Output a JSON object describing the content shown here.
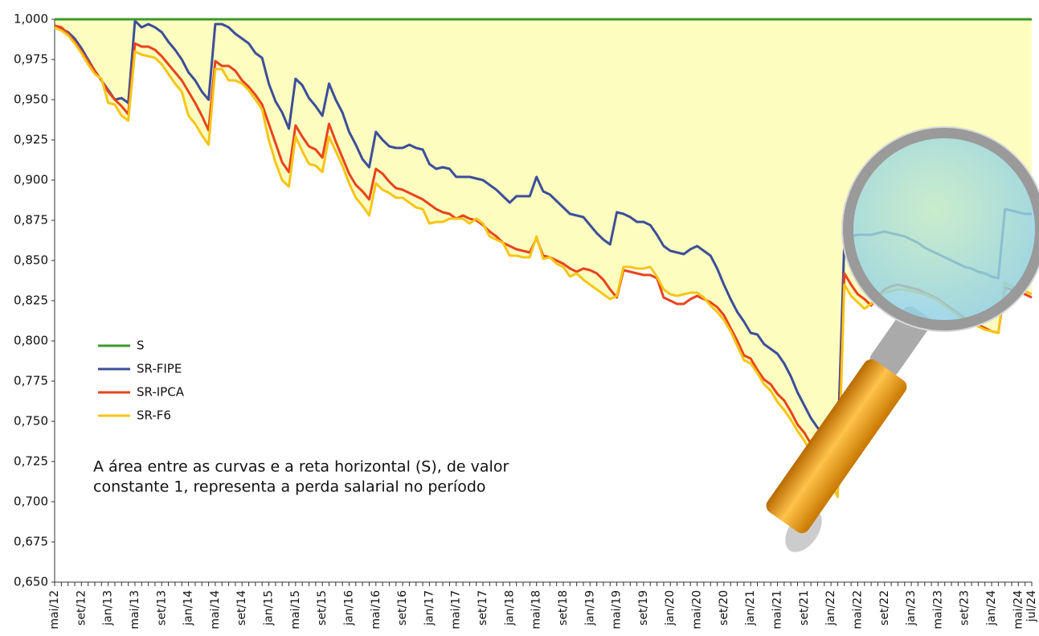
{
  "chart_data": {
    "type": "line",
    "categories": [
      "mai/12",
      null,
      null,
      null,
      "set/12",
      null,
      null,
      null,
      "jan/13",
      null,
      null,
      null,
      "mai/13",
      null,
      null,
      null,
      "set/13",
      null,
      null,
      null,
      "jan/14",
      null,
      null,
      null,
      "mai/14",
      null,
      null,
      null,
      "set/14",
      null,
      null,
      null,
      "jan/15",
      null,
      null,
      null,
      "mai/15",
      null,
      null,
      null,
      "set/15",
      null,
      null,
      null,
      "jan/16",
      null,
      null,
      null,
      "mai/16",
      null,
      null,
      null,
      "set/16",
      null,
      null,
      null,
      "jan/17",
      null,
      null,
      null,
      "mai/17",
      null,
      null,
      null,
      "set/17",
      null,
      null,
      null,
      "jan/18",
      null,
      null,
      null,
      "mai/18",
      null,
      null,
      null,
      "set/18",
      null,
      null,
      null,
      "jan/19",
      null,
      null,
      null,
      "mai/19",
      null,
      null,
      null,
      "set/19",
      null,
      null,
      null,
      "jan/20",
      null,
      null,
      null,
      "mai/20",
      null,
      null,
      null,
      "set/20",
      null,
      null,
      null,
      "jan/21",
      null,
      null,
      null,
      "mai/21",
      null,
      null,
      null,
      "set/21",
      null,
      null,
      null,
      "jan/22",
      null,
      null,
      null,
      "mai/22",
      null,
      null,
      null,
      "set/22",
      null,
      null,
      null,
      "jan/23",
      null,
      null,
      null,
      "mai/23",
      null,
      null,
      null,
      "set/23",
      null,
      null,
      null,
      "jan/24",
      null,
      null,
      null,
      "mai/24",
      null,
      "jul/24"
    ],
    "series": [
      {
        "name": "S",
        "color": "#3a9a2a",
        "values": [
          1,
          1,
          1,
          1,
          1,
          1,
          1,
          1,
          1,
          1,
          1,
          1,
          1,
          1,
          1,
          1,
          1,
          1,
          1,
          1,
          1,
          1,
          1,
          1,
          1,
          1,
          1,
          1,
          1,
          1,
          1,
          1,
          1,
          1,
          1,
          1,
          1,
          1,
          1,
          1,
          1,
          1,
          1,
          1,
          1,
          1,
          1,
          1,
          1,
          1,
          1,
          1,
          1,
          1,
          1,
          1,
          1,
          1,
          1,
          1,
          1,
          1,
          1,
          1,
          1,
          1,
          1,
          1,
          1,
          1,
          1,
          1,
          1,
          1,
          1,
          1,
          1,
          1,
          1,
          1,
          1,
          1,
          1,
          1,
          1,
          1,
          1,
          1,
          1,
          1,
          1,
          1,
          1,
          1,
          1,
          1,
          1,
          1,
          1,
          1,
          1,
          1,
          1,
          1,
          1,
          1,
          1,
          1,
          1,
          1,
          1,
          1,
          1,
          1,
          1,
          1,
          1,
          1,
          1,
          1,
          1,
          1,
          1,
          1,
          1,
          1,
          1,
          1,
          1,
          1,
          1,
          1,
          1,
          1,
          1,
          1,
          1,
          1,
          1,
          1,
          1,
          1,
          1,
          1,
          1,
          1,
          1
        ]
      },
      {
        "name": "SR-FIPE",
        "color": "#3d4e9a",
        "values": [
          0.996,
          0.994,
          0.992,
          0.988,
          0.982,
          0.975,
          0.968,
          0.962,
          0.956,
          0.95,
          0.951,
          0.948,
          0.999,
          0.995,
          0.997,
          0.995,
          0.992,
          0.986,
          0.981,
          0.975,
          0.967,
          0.962,
          0.955,
          0.95,
          0.997,
          0.997,
          0.995,
          0.991,
          0.988,
          0.985,
          0.979,
          0.976,
          0.96,
          0.949,
          0.942,
          0.932,
          0.963,
          0.959,
          0.951,
          0.946,
          0.94,
          0.96,
          0.95,
          0.942,
          0.93,
          0.922,
          0.913,
          0.908,
          0.93,
          0.925,
          0.921,
          0.92,
          0.92,
          0.922,
          0.92,
          0.919,
          0.91,
          0.907,
          0.908,
          0.907,
          0.902,
          0.902,
          0.902,
          0.901,
          0.9,
          0.897,
          0.894,
          0.89,
          0.886,
          0.89,
          0.89,
          0.89,
          0.902,
          0.893,
          0.891,
          0.887,
          0.883,
          0.879,
          0.878,
          0.877,
          0.872,
          0.867,
          0.863,
          0.86,
          0.88,
          0.879,
          0.877,
          0.874,
          0.874,
          0.872,
          0.866,
          0.859,
          0.856,
          0.855,
          0.854,
          0.857,
          0.859,
          0.856,
          0.853,
          0.845,
          0.835,
          0.826,
          0.818,
          0.812,
          0.805,
          0.804,
          0.798,
          0.795,
          0.792,
          0.786,
          0.778,
          0.768,
          0.76,
          0.752,
          0.746,
          0.742,
          0.738,
          0.734,
          0.862,
          0.865,
          0.866,
          0.866,
          0.866,
          0.867,
          0.868,
          0.867,
          0.866,
          0.865,
          0.863,
          0.861,
          0.858,
          0.856,
          0.854,
          0.852,
          0.85,
          0.848,
          0.846,
          0.845,
          0.843,
          0.842,
          0.84,
          0.839,
          0.882,
          0.881,
          0.88,
          0.879,
          0.879
        ]
      },
      {
        "name": "SR-IPCA",
        "color": "#e8441c",
        "values": [
          0.996,
          0.995,
          0.991,
          0.986,
          0.98,
          0.974,
          0.968,
          0.962,
          0.955,
          0.95,
          0.946,
          0.941,
          0.985,
          0.983,
          0.983,
          0.981,
          0.977,
          0.972,
          0.967,
          0.962,
          0.955,
          0.948,
          0.94,
          0.931,
          0.974,
          0.971,
          0.971,
          0.968,
          0.962,
          0.958,
          0.953,
          0.947,
          0.935,
          0.923,
          0.911,
          0.905,
          0.934,
          0.927,
          0.921,
          0.919,
          0.914,
          0.935,
          0.924,
          0.914,
          0.904,
          0.897,
          0.893,
          0.888,
          0.907,
          0.904,
          0.899,
          0.895,
          0.894,
          0.892,
          0.89,
          0.888,
          0.885,
          0.882,
          0.88,
          0.879,
          0.876,
          0.878,
          0.876,
          0.875,
          0.872,
          0.868,
          0.865,
          0.861,
          0.859,
          0.857,
          0.856,
          0.855,
          0.864,
          0.853,
          0.852,
          0.85,
          0.848,
          0.845,
          0.843,
          0.845,
          0.844,
          0.842,
          0.838,
          0.832,
          0.827,
          0.844,
          0.843,
          0.842,
          0.841,
          0.841,
          0.839,
          0.827,
          0.825,
          0.823,
          0.823,
          0.826,
          0.828,
          0.826,
          0.824,
          0.821,
          0.816,
          0.808,
          0.8,
          0.791,
          0.789,
          0.782,
          0.776,
          0.773,
          0.767,
          0.763,
          0.756,
          0.748,
          0.743,
          0.736,
          0.73,
          0.723,
          0.716,
          0.712,
          0.842,
          0.835,
          0.829,
          0.826,
          0.822,
          0.828,
          0.832,
          0.834,
          0.835,
          0.834,
          0.833,
          0.832,
          0.83,
          0.828,
          0.826,
          0.823,
          0.82,
          0.817,
          0.814,
          0.812,
          0.81,
          0.808,
          0.806,
          0.805,
          0.833,
          0.832,
          0.83,
          0.829,
          0.827
        ]
      },
      {
        "name": "SR-F6",
        "color": "#f5c518",
        "values": [
          0.995,
          0.993,
          0.99,
          0.985,
          0.979,
          0.972,
          0.966,
          0.963,
          0.948,
          0.947,
          0.94,
          0.937,
          0.98,
          0.978,
          0.977,
          0.976,
          0.972,
          0.966,
          0.96,
          0.955,
          0.94,
          0.935,
          0.928,
          0.922,
          0.969,
          0.969,
          0.962,
          0.962,
          0.96,
          0.956,
          0.95,
          0.944,
          0.925,
          0.911,
          0.9,
          0.896,
          0.927,
          0.918,
          0.91,
          0.909,
          0.905,
          0.927,
          0.918,
          0.909,
          0.898,
          0.889,
          0.884,
          0.878,
          0.898,
          0.894,
          0.892,
          0.889,
          0.889,
          0.886,
          0.883,
          0.882,
          0.873,
          0.874,
          0.874,
          0.876,
          0.876,
          0.876,
          0.873,
          0.876,
          0.873,
          0.865,
          0.863,
          0.861,
          0.853,
          0.853,
          0.852,
          0.852,
          0.865,
          0.851,
          0.852,
          0.848,
          0.846,
          0.84,
          0.842,
          0.838,
          0.835,
          0.832,
          0.829,
          0.826,
          0.828,
          0.846,
          0.846,
          0.845,
          0.845,
          0.846,
          0.84,
          0.832,
          0.829,
          0.828,
          0.829,
          0.83,
          0.83,
          0.827,
          0.822,
          0.818,
          0.813,
          0.806,
          0.797,
          0.788,
          0.786,
          0.78,
          0.773,
          0.769,
          0.762,
          0.757,
          0.751,
          0.744,
          0.738,
          0.731,
          0.725,
          0.718,
          0.712,
          0.703,
          0.835,
          0.828,
          0.824,
          0.82,
          0.823,
          0.828,
          0.83,
          0.831,
          0.832,
          0.832,
          0.831,
          0.83,
          0.829,
          0.827,
          0.825,
          0.822,
          0.819,
          0.816,
          0.813,
          0.811,
          0.809,
          0.807,
          0.806,
          0.805,
          0.836,
          0.834,
          0.832,
          0.831,
          0.829
        ]
      }
    ],
    "ylim": [
      0.65,
      1.0
    ],
    "yticks": [
      {
        "value": 0.65,
        "label": "0,650"
      },
      {
        "value": 0.675,
        "label": "0,675"
      },
      {
        "value": 0.7,
        "label": "0,700"
      },
      {
        "value": 0.725,
        "label": "0,725"
      },
      {
        "value": 0.75,
        "label": "0,750"
      },
      {
        "value": 0.775,
        "label": "0,775"
      },
      {
        "value": 0.8,
        "label": "0,800"
      },
      {
        "value": 0.825,
        "label": "0,825"
      },
      {
        "value": 0.85,
        "label": "0,850"
      },
      {
        "value": 0.875,
        "label": "0,875"
      },
      {
        "value": 0.9,
        "label": "0,900"
      },
      {
        "value": 0.925,
        "label": "0,925"
      },
      {
        "value": 0.95,
        "label": "0,950"
      },
      {
        "value": 0.975,
        "label": "0,975"
      },
      {
        "value": 1.0,
        "label": "1,000"
      }
    ],
    "area_color": "#fdfdc0",
    "legend": "left",
    "annotation": [
      "A área entre as curvas e a reta horizontal (S), de valor",
      "constante 1, representa a perda salarial no período"
    ]
  }
}
